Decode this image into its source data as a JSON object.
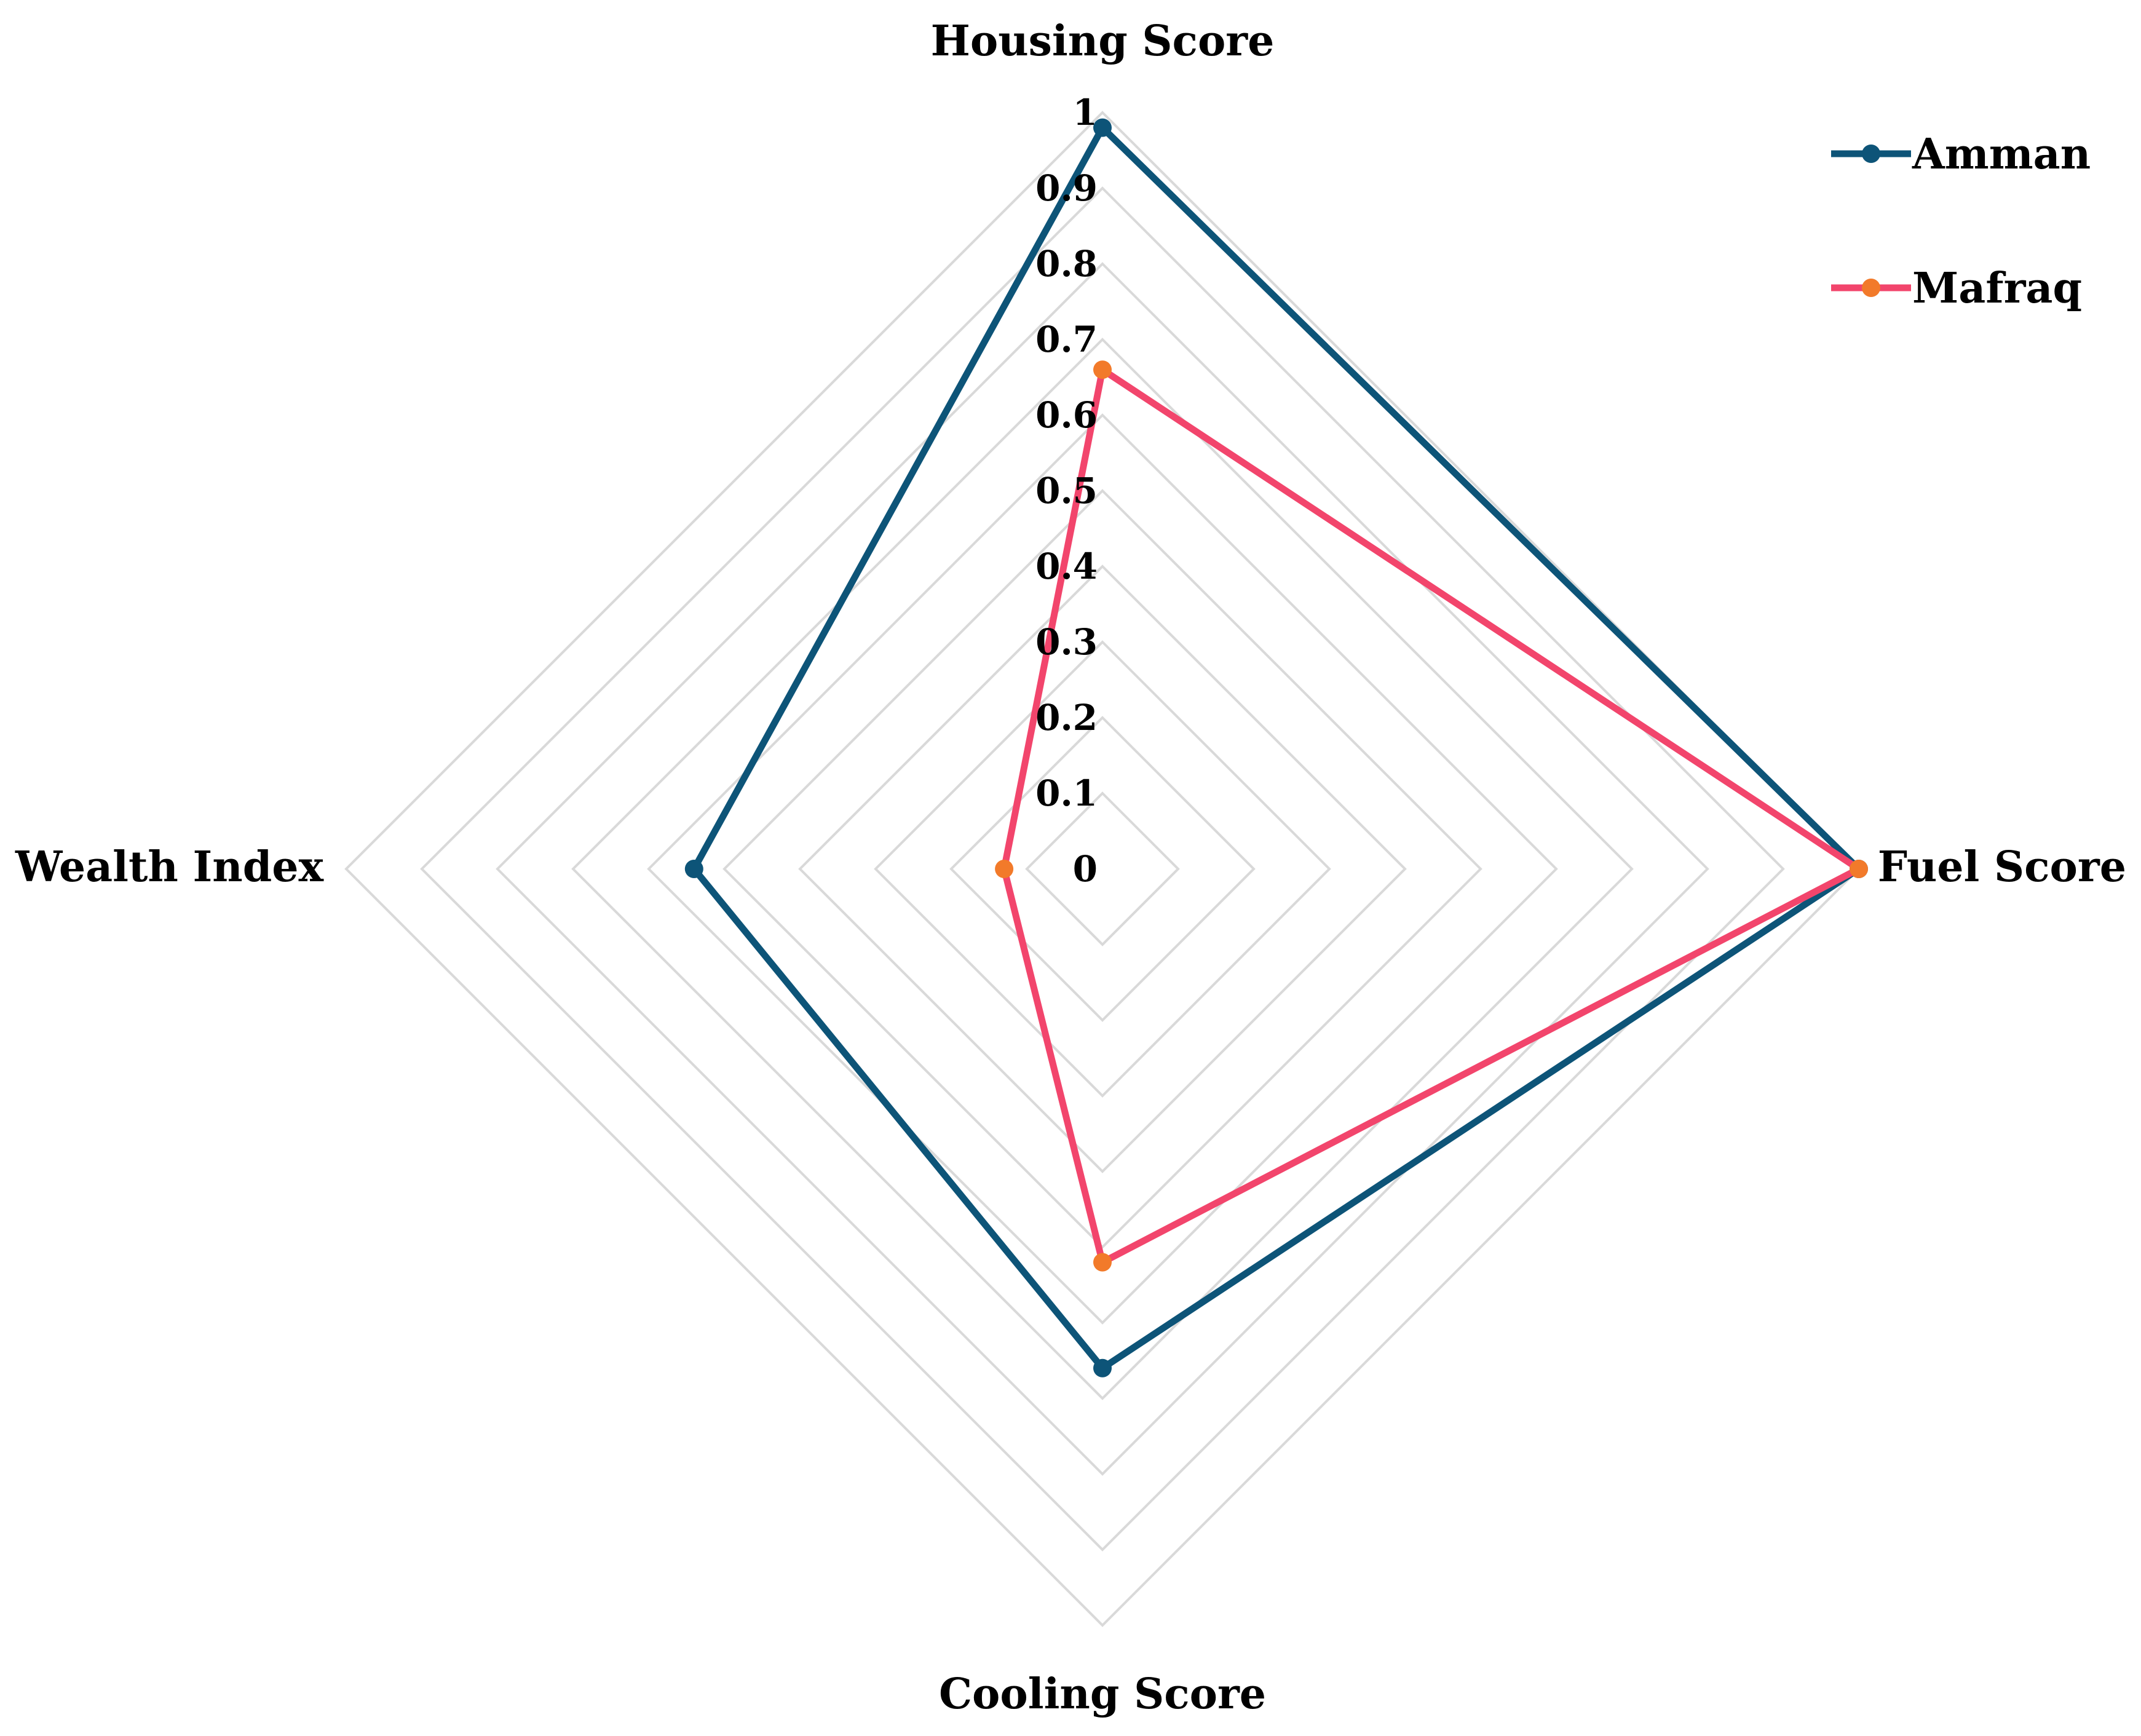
{
  "chart_data": {
    "type": "radar",
    "categories": [
      "Housing Score",
      "Fuel Score",
      "Cooling Score",
      "Wealth Index"
    ],
    "series": [
      {
        "name": "Amman",
        "values": [
          0.98,
          1.0,
          0.66,
          0.54
        ],
        "line_color": "#0d5478",
        "marker_color": "#0d5478"
      },
      {
        "name": "Mafraq",
        "values": [
          0.66,
          1.0,
          0.52,
          0.13
        ],
        "line_color": "#f2456c",
        "marker_color": "#f27a2a"
      }
    ],
    "r_axis": {
      "min": 0,
      "max": 1,
      "step": 0.1,
      "tick_labels": [
        "0",
        "0.1",
        "0.2",
        "0.3",
        "0.4",
        "0.5",
        "0.6",
        "0.7",
        "0.8",
        "0.9",
        "1"
      ]
    },
    "grid_color": "#d9d9d9",
    "grid": true,
    "legend": {
      "placement": "top-right"
    }
  }
}
